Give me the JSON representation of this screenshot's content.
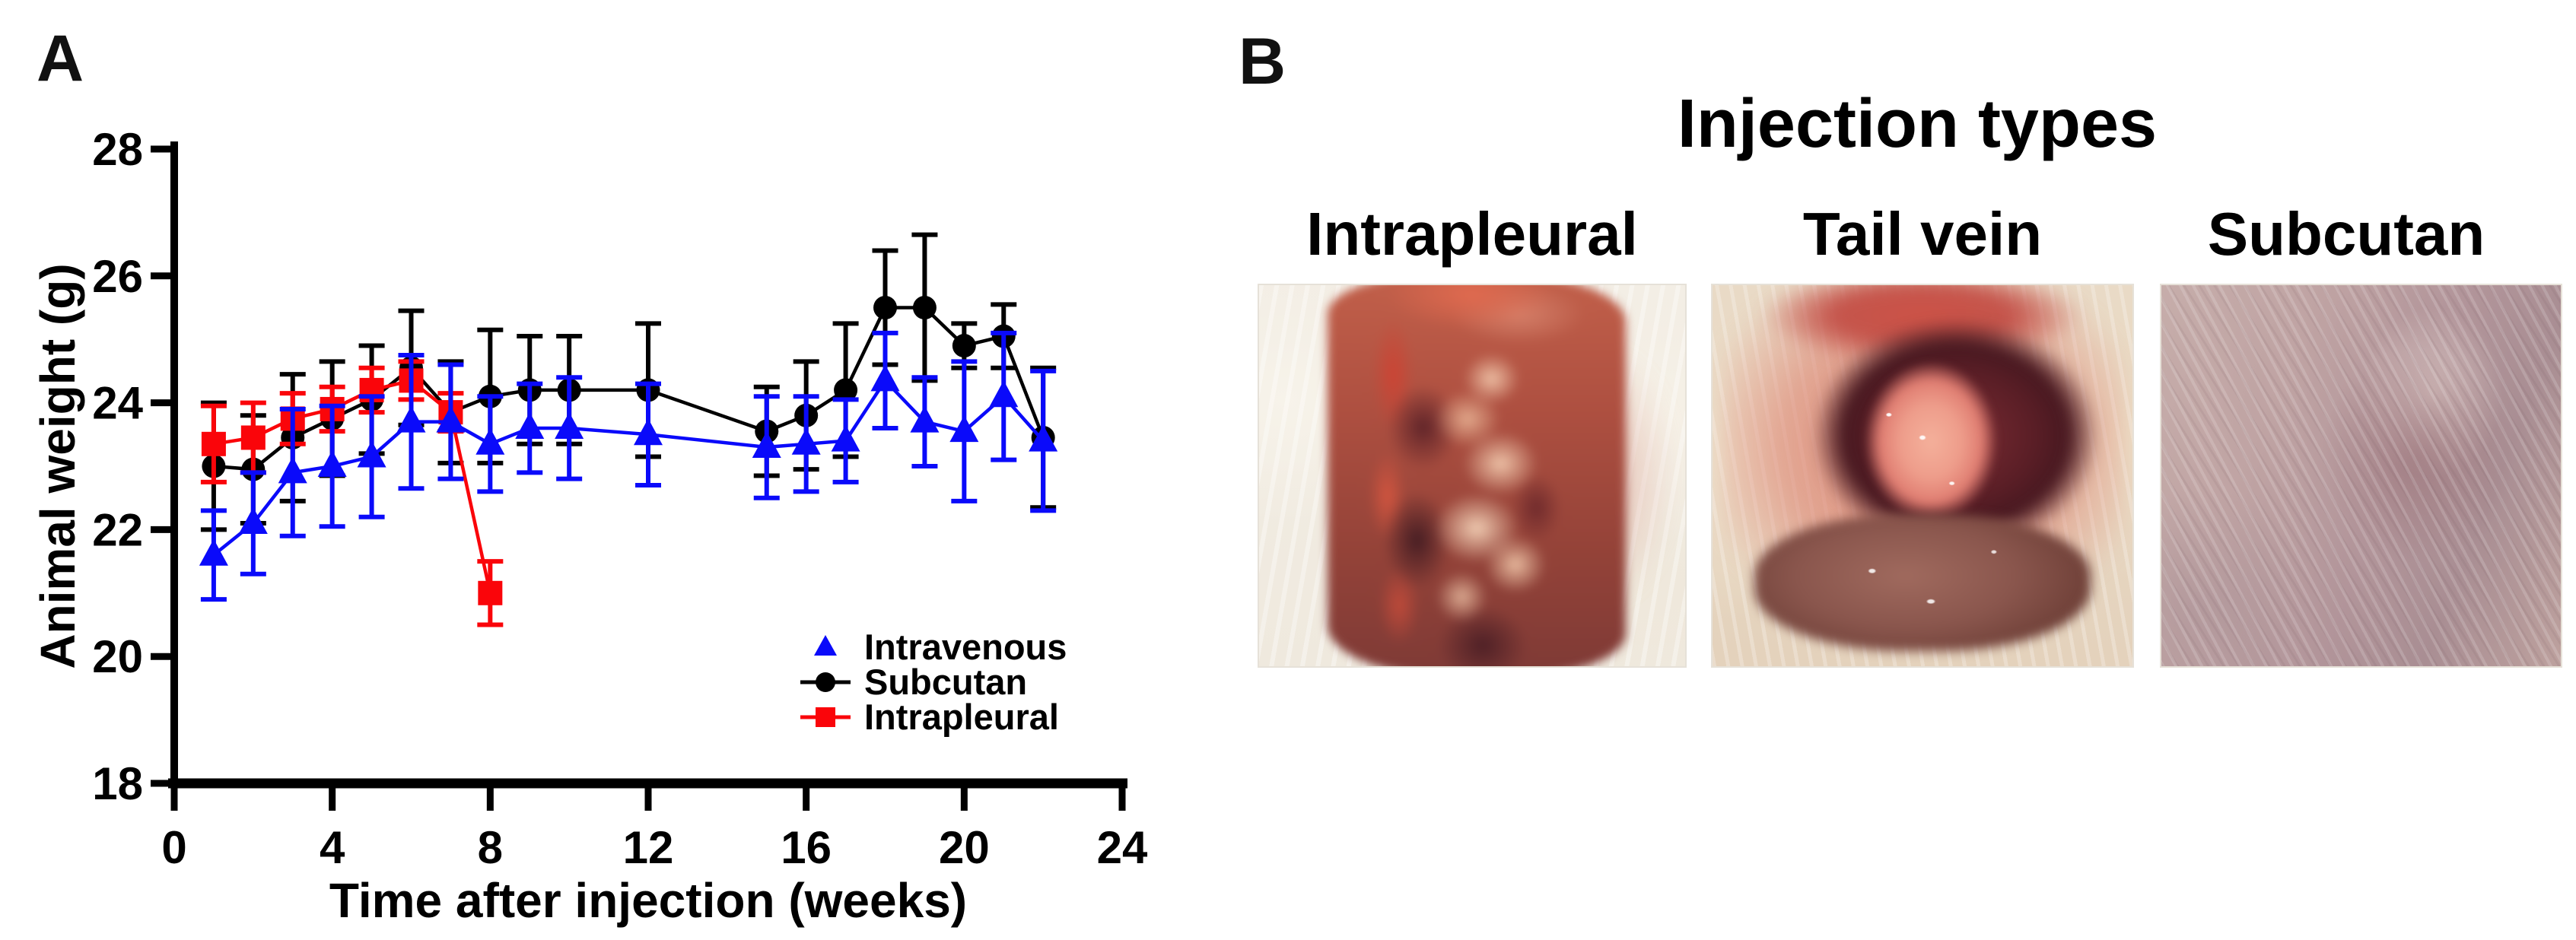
{
  "panel_a": {
    "label": "A"
  },
  "panel_b": {
    "label": "B",
    "title": "Injection types",
    "photos": [
      {
        "label": "Intrapleural",
        "kind": "open-dissection-with-tumor-nodules"
      },
      {
        "label": "Tail vein",
        "kind": "open-thoracic-cavity"
      },
      {
        "label": "Subcutan",
        "kind": "intact-fur-skin"
      }
    ]
  },
  "chart_data": {
    "type": "line",
    "title": "",
    "xlabel": "Time after injection (weeks)",
    "ylabel": "Animal weight (g)",
    "xlim": [
      0,
      24
    ],
    "ylim": [
      18,
      28
    ],
    "xticks": [
      0,
      4,
      8,
      12,
      16,
      20,
      24
    ],
    "yticks": [
      18,
      20,
      22,
      24,
      26,
      28
    ],
    "grid": false,
    "legend_position": "bottom-right",
    "x": [
      1,
      2,
      3,
      4,
      5,
      6,
      7,
      8,
      9,
      10,
      12,
      15,
      16,
      17,
      18,
      19,
      20,
      21,
      22
    ],
    "series": [
      {
        "name": "Intravenous",
        "color": "#0a0afa",
        "marker": "triangle",
        "legend_line": false,
        "values": [
          21.6,
          22.1,
          22.9,
          23.0,
          23.15,
          23.7,
          23.7,
          23.35,
          23.6,
          23.6,
          23.5,
          23.3,
          23.35,
          23.4,
          24.35,
          23.7,
          23.55,
          24.1,
          23.4
        ],
        "errors": [
          0.7,
          0.8,
          1.0,
          0.95,
          0.95,
          1.05,
          0.9,
          0.75,
          0.7,
          0.8,
          0.8,
          0.8,
          0.75,
          0.65,
          0.75,
          0.7,
          1.1,
          1.0,
          1.1
        ]
      },
      {
        "name": "Subcutan",
        "color": "#000000",
        "marker": "circle",
        "legend_line": true,
        "values": [
          23.0,
          22.95,
          23.45,
          23.75,
          24.05,
          24.55,
          23.85,
          24.1,
          24.2,
          24.2,
          24.2,
          23.55,
          23.8,
          24.2,
          25.5,
          25.5,
          24.9,
          25.05,
          23.45
        ],
        "errors": [
          1.0,
          0.85,
          1.0,
          0.9,
          0.85,
          0.9,
          0.8,
          1.05,
          0.85,
          0.85,
          1.05,
          0.7,
          0.85,
          1.05,
          0.9,
          1.15,
          0.35,
          0.5,
          1.1
        ]
      },
      {
        "name": "Intrapleural",
        "color": "#fa050a",
        "marker": "square",
        "legend_line": true,
        "values": [
          23.35,
          23.45,
          23.75,
          23.9,
          24.2,
          24.35,
          23.85,
          21.0
        ],
        "errors": [
          0.6,
          0.55,
          0.4,
          0.35,
          0.35,
          0.3,
          0.3,
          0.5
        ]
      }
    ]
  }
}
